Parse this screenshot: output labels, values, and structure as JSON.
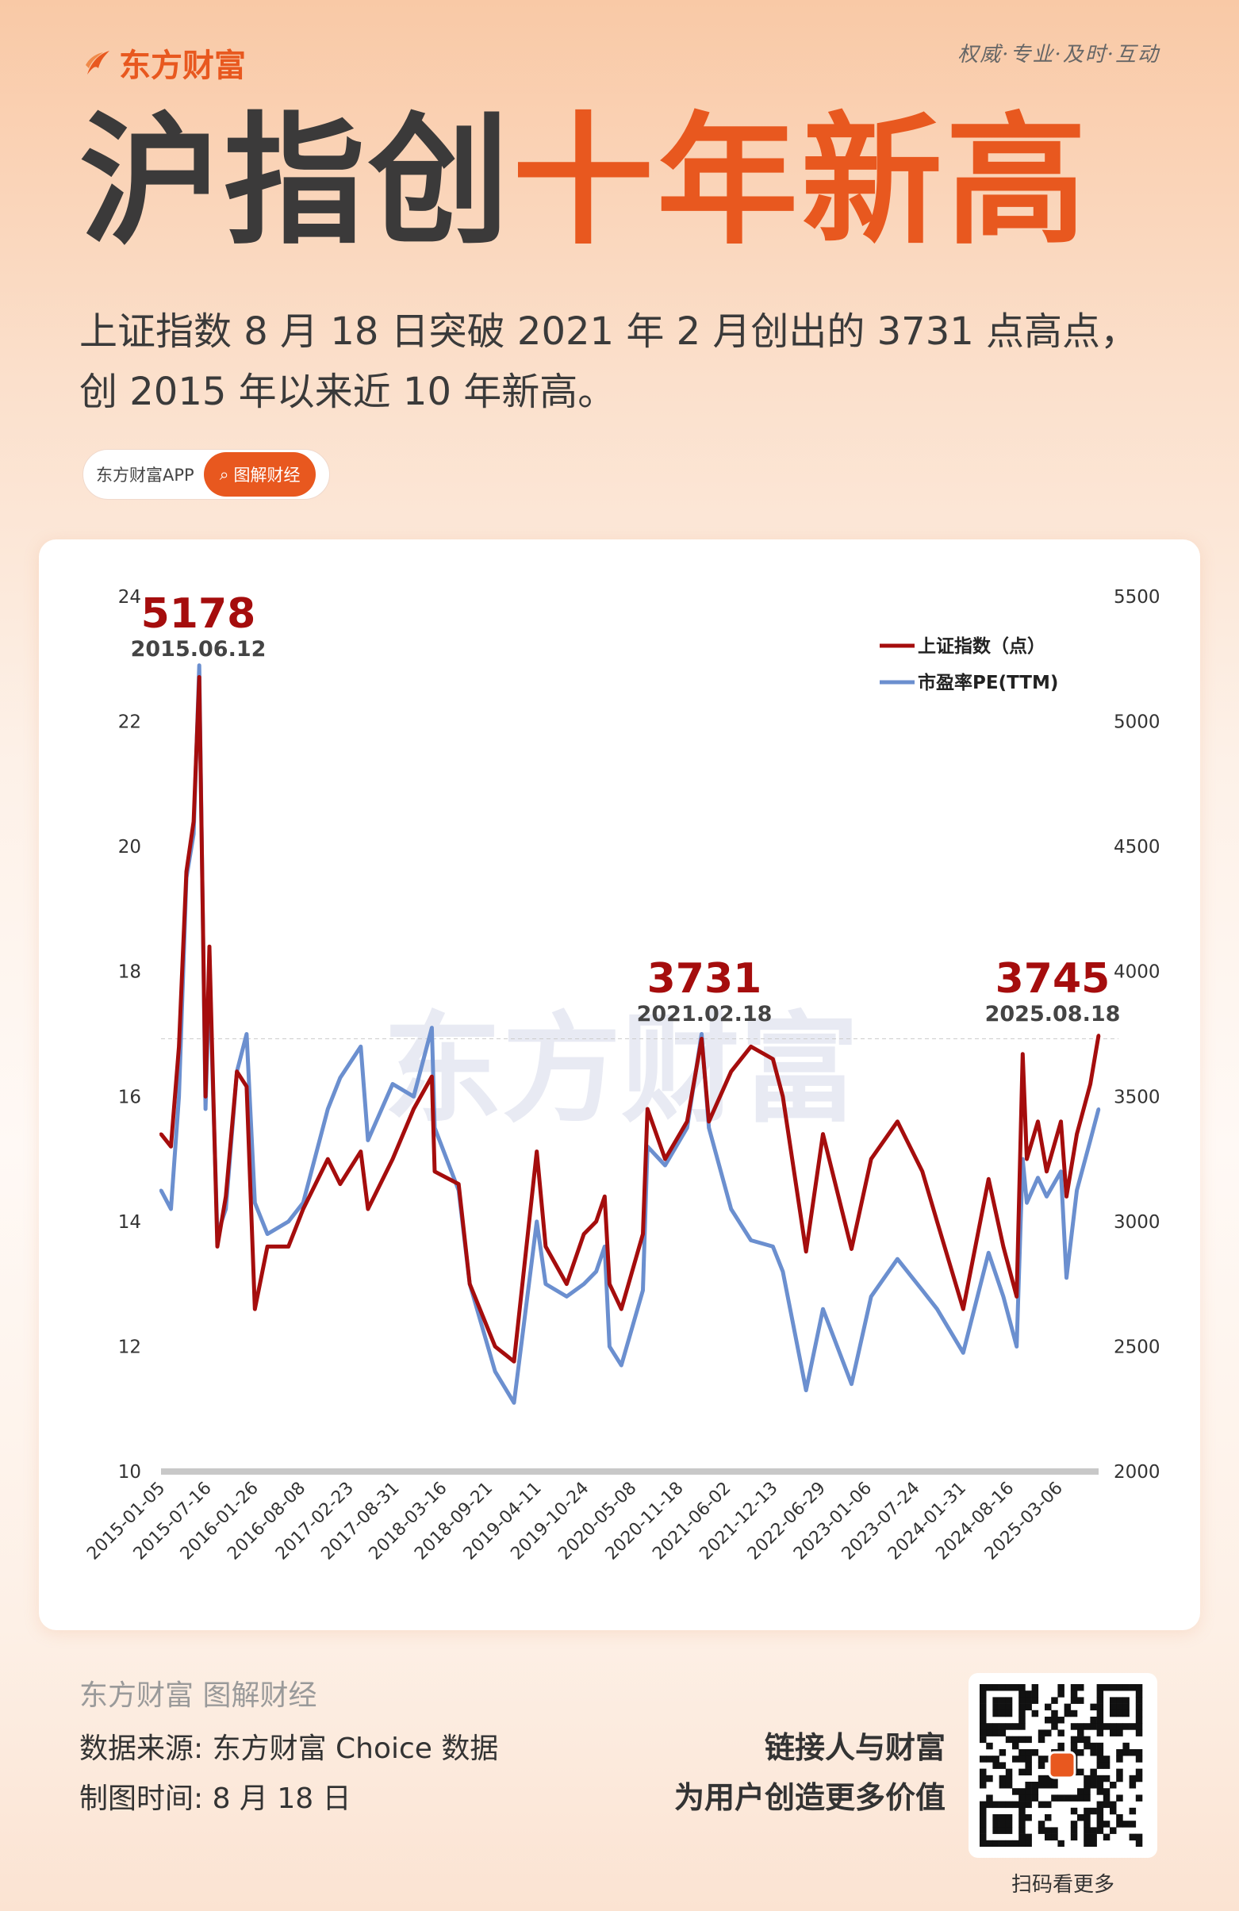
{
  "brand": {
    "name": "东方财富",
    "slogan": "权威·专业·及时·互动"
  },
  "title": {
    "part1": "沪指创",
    "part2": "十年新高"
  },
  "subtitle": {
    "line1": "上证指数 8 月 18 日突破 2021 年 2 月创出的 3731 点高点，",
    "line2": "创 2015 年以来近 10 年新高。"
  },
  "pill": {
    "app": "东方财富APP",
    "tag": "图解财经",
    "icon": "search-icon"
  },
  "colors": {
    "accent": "#e8581f",
    "index": "#a50d0d",
    "pe": "#6b8fcf"
  },
  "chart_data": {
    "type": "line",
    "watermark": "东方财富",
    "left_axis": {
      "ylim": [
        10,
        24
      ],
      "ticks": [
        "10",
        "12",
        "14",
        "16",
        "18",
        "20",
        "22",
        "24"
      ]
    },
    "right_axis": {
      "ylim": [
        2000,
        5500
      ],
      "ticks": [
        "2000",
        "2500",
        "3000",
        "3500",
        "4000",
        "4500",
        "5000",
        "5500"
      ]
    },
    "x_ticks": [
      "2015-01-05",
      "2015-07-16",
      "2016-01-26",
      "2016-08-08",
      "2017-02-23",
      "2017-08-31",
      "2018-03-16",
      "2018-09-21",
      "2019-04-11",
      "2019-10-24",
      "2020-05-08",
      "2020-11-18",
      "2021-06-02",
      "2021-12-13",
      "2022-06-29",
      "2023-01-06",
      "2023-07-24",
      "2024-01-31",
      "2024-08-16",
      "2025-03-06"
    ],
    "x_range": [
      "2015-01-05",
      "2025-08-18"
    ],
    "reference_line": 3731,
    "dates": [
      "2015-01-05",
      "2015-02-15",
      "2015-03-20",
      "2015-04-20",
      "2015-05-20",
      "2015-06-12",
      "2015-07-08",
      "2015-07-24",
      "2015-08-26",
      "2015-09-30",
      "2015-11-15",
      "2015-12-25",
      "2016-01-28",
      "2016-03-20",
      "2016-06-15",
      "2016-08-15",
      "2016-11-25",
      "2017-01-15",
      "2017-04-10",
      "2017-05-10",
      "2017-08-20",
      "2017-11-15",
      "2018-01-29",
      "2018-02-10",
      "2018-05-20",
      "2018-07-05",
      "2018-10-18",
      "2019-01-04",
      "2019-04-08",
      "2019-05-15",
      "2019-08-10",
      "2019-10-20",
      "2019-12-10",
      "2020-01-14",
      "2020-02-03",
      "2020-03-23",
      "2020-06-20",
      "2020-07-09",
      "2020-09-20",
      "2020-12-20",
      "2021-02-18",
      "2021-03-20",
      "2021-06-20",
      "2021-09-10",
      "2021-12-10",
      "2022-01-20",
      "2022-04-26",
      "2022-07-05",
      "2022-10-31",
      "2023-01-20",
      "2023-05-09",
      "2023-08-20",
      "2023-10-20",
      "2024-02-05",
      "2024-05-20",
      "2024-07-20",
      "2024-09-13",
      "2024-10-08",
      "2024-10-25",
      "2024-12-10",
      "2025-01-15",
      "2025-03-15",
      "2025-04-07",
      "2025-05-20",
      "2025-07-15",
      "2025-08-18"
    ],
    "series": [
      {
        "name": "上证指数（点）",
        "axis": "right",
        "values": [
          3350,
          3300,
          3700,
          4400,
          4600,
          5178,
          3500,
          4100,
          2900,
          3100,
          3600,
          3540,
          2650,
          2900,
          2900,
          3050,
          3250,
          3150,
          3280,
          3050,
          3250,
          3450,
          3580,
          3200,
          3150,
          2750,
          2500,
          2440,
          3280,
          2900,
          2750,
          2950,
          3000,
          3100,
          2750,
          2650,
          2950,
          3450,
          3250,
          3400,
          3731,
          3400,
          3600,
          3700,
          3650,
          3500,
          2880,
          3350,
          2890,
          3250,
          3400,
          3200,
          3000,
          2650,
          3170,
          2900,
          2700,
          3670,
          3250,
          3400,
          3200,
          3400,
          3100,
          3350,
          3550,
          3745
        ]
      },
      {
        "name": "市盈率PE(TTM)",
        "axis": "left",
        "values": [
          14.5,
          14.2,
          16.0,
          19.5,
          20.2,
          22.9,
          15.8,
          18.0,
          13.8,
          14.2,
          16.4,
          17.0,
          14.3,
          13.8,
          14.0,
          14.3,
          15.8,
          16.3,
          16.8,
          15.3,
          16.2,
          16.0,
          17.1,
          15.5,
          14.5,
          13.0,
          11.6,
          11.1,
          14.0,
          13.0,
          12.8,
          13.0,
          13.2,
          13.6,
          12.0,
          11.7,
          12.9,
          15.2,
          14.9,
          15.5,
          17.0,
          15.5,
          14.2,
          13.7,
          13.6,
          13.2,
          11.3,
          12.6,
          11.4,
          12.8,
          13.4,
          12.9,
          12.6,
          11.9,
          13.5,
          12.8,
          12.0,
          15.0,
          14.3,
          14.7,
          14.4,
          14.8,
          13.1,
          14.5,
          15.3,
          15.8
        ]
      }
    ],
    "annotations": [
      {
        "value": "5178",
        "date": "2015.06.12"
      },
      {
        "value": "3731",
        "date": "2021.02.18"
      },
      {
        "value": "3745",
        "date": "2025.08.18"
      }
    ],
    "legend_position": "top-right",
    "grid": false
  },
  "footer": {
    "logo": "东方财富 图解财经",
    "source": "数据来源: 东方财富 Choice 数据",
    "date": "制图时间: 8 月 18 日",
    "slogan1": "链接人与财富",
    "slogan2": "为用户创造更多价值",
    "qr_caption": "扫码看更多"
  }
}
